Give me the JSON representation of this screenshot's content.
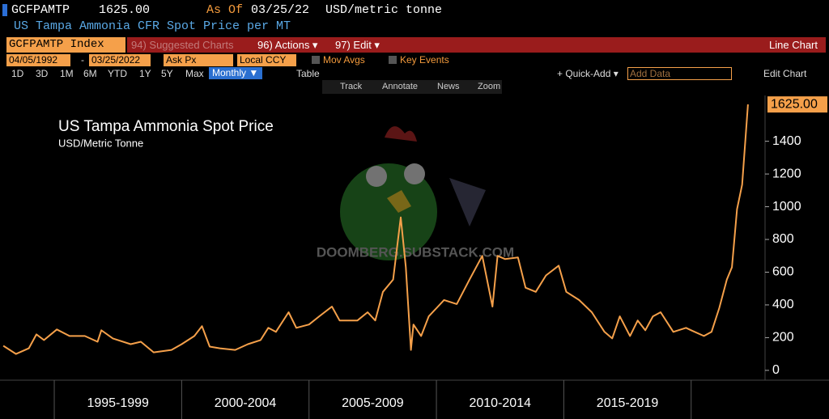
{
  "terminal": {
    "ticker": "GCFPAMTP",
    "last_price": "1625.00",
    "as_of_label": "As Of",
    "as_of_date": "03/25/22",
    "units": "USD/metric tonne",
    "description": "US Tampa Ammonia CFR Spot Price per MT",
    "security": "GCFPAMTP Index",
    "suggested": "94) Suggested Charts",
    "actions": "96) Actions ▾",
    "edit": "97) Edit ▾",
    "chart_kind": "Line Chart",
    "start_date": "04/05/1992",
    "date_dash": "-",
    "end_date": "03/25/2022",
    "field": "Ask Px",
    "currency": "Local CCY",
    "mov_avgs": "Mov Avgs",
    "key_events": "Key Events",
    "ranges": [
      "1D",
      "3D",
      "1M",
      "6M",
      "YTD",
      "1Y",
      "5Y",
      "Max"
    ],
    "frequency": "Monthly ▼",
    "table": "Table",
    "quick_add": "+ Quick-Add ▾",
    "add_data": "Add Data",
    "edit_chart": "Edit Chart",
    "tools": [
      "Track",
      "Annotate",
      "News",
      "Zoom"
    ]
  },
  "chart_data": {
    "type": "line",
    "title": "US Tampa Ammonia Spot Price",
    "subtitle": "USD/Metric Tonne",
    "watermark": "DOOMBERG.SUBSTACK.COM",
    "x": [
      1993.0,
      1993.5,
      1994.0,
      1994.3,
      1994.6,
      1995.1,
      1995.6,
      1996.2,
      1996.7,
      1996.85,
      1997.3,
      1998.0,
      1998.4,
      1998.9,
      1999.6,
      2000.0,
      2000.5,
      2000.8,
      2001.1,
      2001.5,
      2002.1,
      2002.6,
      2003.1,
      2003.4,
      2003.7,
      2004.2,
      2004.5,
      2005.0,
      2005.4,
      2005.9,
      2006.2,
      2006.9,
      2007.3,
      2007.6,
      2007.9,
      2008.3,
      2008.6,
      2008.8,
      2009.0,
      2009.1,
      2009.4,
      2009.7,
      2010.0,
      2010.3,
      2010.8,
      2011.3,
      2011.8,
      2012.2,
      2012.4,
      2012.7,
      2013.2,
      2013.5,
      2013.9,
      2014.3,
      2014.8,
      2015.1,
      2015.6,
      2016.1,
      2016.6,
      2016.9,
      2017.2,
      2017.6,
      2017.9,
      2018.2,
      2018.5,
      2018.8,
      2019.3,
      2019.8,
      2020.0,
      2020.5,
      2020.8,
      2021.1,
      2021.4,
      2021.6,
      2021.8,
      2022.0,
      2022.23
    ],
    "series": [
      {
        "name": "GCFPAMTP",
        "color": "#f5a04a",
        "values": [
          150,
          100,
          135,
          220,
          185,
          250,
          210,
          210,
          175,
          245,
          195,
          160,
          175,
          110,
          125,
          160,
          210,
          270,
          145,
          135,
          125,
          160,
          185,
          260,
          235,
          355,
          260,
          280,
          330,
          390,
          305,
          305,
          355,
          305,
          480,
          555,
          935,
          630,
          125,
          280,
          210,
          330,
          380,
          430,
          405,
          555,
          700,
          390,
          700,
          680,
          690,
          505,
          480,
          580,
          640,
          480,
          430,
          355,
          235,
          195,
          330,
          210,
          305,
          245,
          330,
          355,
          235,
          260,
          245,
          210,
          235,
          380,
          555,
          630,
          985,
          1135,
          1625
        ]
      }
    ],
    "last_label": "1625.00",
    "xlim": [
      1992.87,
      2022.9
    ],
    "ylim": [
      -60,
      1680
    ],
    "yticks": [
      0,
      200,
      400,
      600,
      800,
      1000,
      1200,
      1400
    ],
    "x_periods": [
      {
        "label": "1995-1999",
        "start": 1995,
        "end": 2000
      },
      {
        "label": "2000-2004",
        "start": 2000,
        "end": 2005
      },
      {
        "label": "2005-2009",
        "start": 2005,
        "end": 2010
      },
      {
        "label": "2010-2014",
        "start": 2010,
        "end": 2015
      },
      {
        "label": "2015-2019",
        "start": 2015,
        "end": 2020
      }
    ],
    "grid": false
  }
}
